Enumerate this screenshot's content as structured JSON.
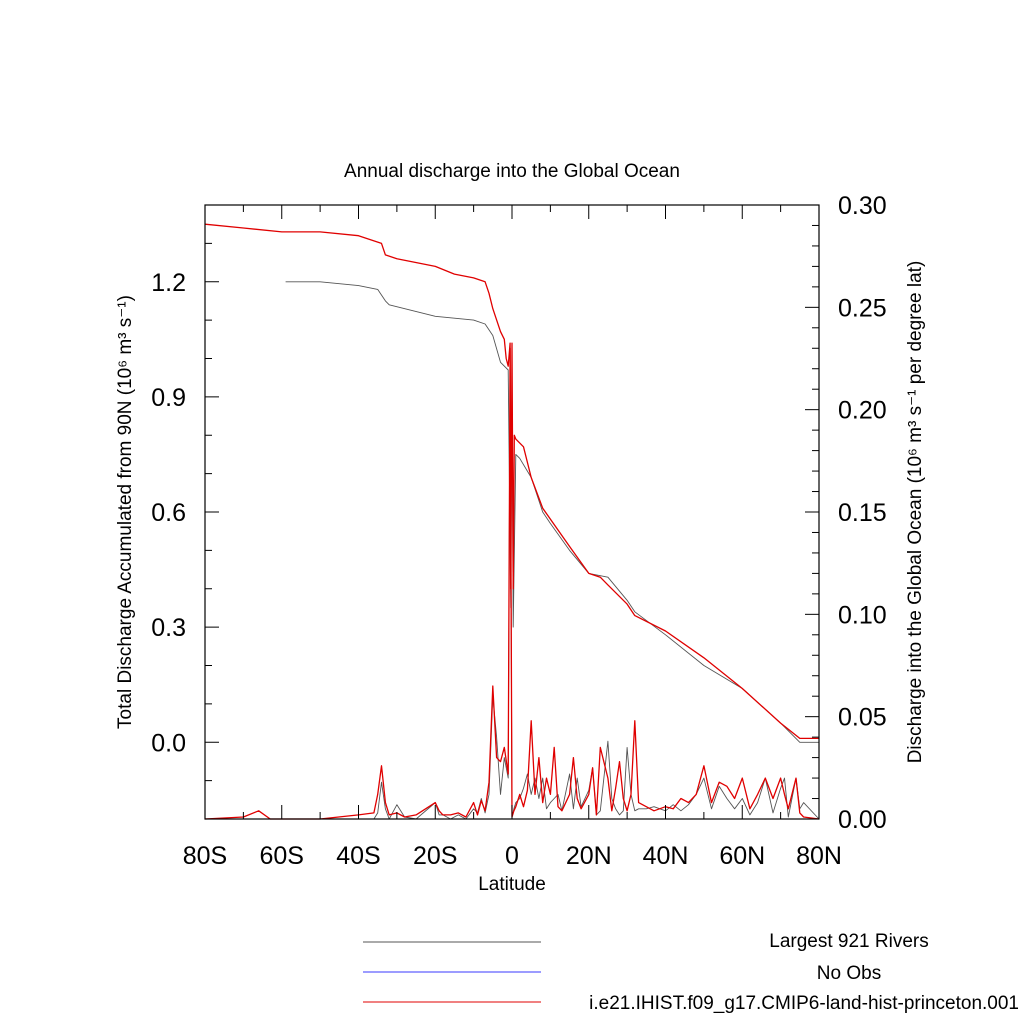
{
  "chart_data": {
    "type": "line",
    "title": "Annual discharge into the Global Ocean",
    "xlabel": "Latitude",
    "ylabel_left": "Total Discharge Accumulated from 90N (10⁶ m³ s⁻¹)",
    "ylabel_right": "Discharge into the Global Ocean (10⁶ m³ s⁻¹ per degree lat)",
    "xlim": [
      -80,
      80
    ],
    "ylim_left": [
      -0.2,
      1.4
    ],
    "ylim_right": [
      0,
      0.3
    ],
    "x_ticks": [
      {
        "value": -80,
        "label": "80S"
      },
      {
        "value": -60,
        "label": "60S"
      },
      {
        "value": -40,
        "label": "40S"
      },
      {
        "value": -20,
        "label": "20S"
      },
      {
        "value": 0,
        "label": "0"
      },
      {
        "value": 20,
        "label": "20N"
      },
      {
        "value": 40,
        "label": "40N"
      },
      {
        "value": 60,
        "label": "60N"
      },
      {
        "value": 80,
        "label": "80N"
      }
    ],
    "y_ticks_left": [
      {
        "value": 0.0,
        "label": "0.0"
      },
      {
        "value": 0.3,
        "label": "0.3"
      },
      {
        "value": 0.6,
        "label": "0.6"
      },
      {
        "value": 0.9,
        "label": "0.9"
      },
      {
        "value": 1.2,
        "label": "1.2"
      }
    ],
    "y_ticks_right": [
      {
        "value": 0.0,
        "label": "0.00"
      },
      {
        "value": 0.05,
        "label": "0.05"
      },
      {
        "value": 0.1,
        "label": "0.10"
      },
      {
        "value": 0.15,
        "label": "0.15"
      },
      {
        "value": 0.2,
        "label": "0.20"
      },
      {
        "value": 0.25,
        "label": "0.25"
      },
      {
        "value": 0.3,
        "label": "0.30"
      }
    ],
    "legend": [
      {
        "label": "Largest 921 Rivers",
        "color": "#555555"
      },
      {
        "label": "No Obs",
        "color": "#3a3aff"
      },
      {
        "label": "i.e21.IHIST.f09_g17.CMIP6-land-hist-princeton.001",
        "color": "#e00000"
      }
    ],
    "series": [
      {
        "name": "Largest 921 Rivers",
        "kind": "accumulated",
        "axis": "left",
        "color": "#555555",
        "x": [
          -59,
          -50,
          -40,
          -35,
          -33,
          -32,
          -20,
          -10,
          -7,
          -5,
          -3,
          -1,
          -0.3,
          0,
          0.3,
          1,
          2,
          5,
          8,
          10,
          15,
          20,
          25,
          30,
          32,
          40,
          50,
          60,
          70,
          75,
          80
        ],
        "y": [
          1.2,
          1.2,
          1.19,
          1.18,
          1.15,
          1.14,
          1.11,
          1.1,
          1.09,
          1.06,
          0.99,
          0.97,
          0.35,
          0.95,
          0.3,
          0.75,
          0.74,
          0.69,
          0.6,
          0.57,
          0.5,
          0.44,
          0.43,
          0.37,
          0.34,
          0.28,
          0.2,
          0.14,
          0.05,
          0.0,
          0.0
        ]
      },
      {
        "name": "i.e21.IHIST.f09_g17.CMIP6-land-hist-princeton.001",
        "kind": "accumulated",
        "axis": "left",
        "color": "#e00000",
        "x": [
          -80,
          -70,
          -60,
          -50,
          -40,
          -34,
          -33,
          -30,
          -20,
          -15,
          -10,
          -7,
          -6,
          -5,
          -3,
          -2,
          -1.5,
          -1,
          -0.5,
          -0.3,
          0,
          0.3,
          0.6,
          1,
          3,
          5,
          8,
          15,
          20,
          23,
          25,
          30,
          32,
          40,
          50,
          60,
          70,
          75,
          80
        ],
        "y": [
          1.35,
          1.34,
          1.33,
          1.33,
          1.32,
          1.3,
          1.27,
          1.26,
          1.24,
          1.22,
          1.21,
          1.2,
          1.17,
          1.13,
          1.07,
          1.05,
          1.0,
          0.98,
          1.04,
          0.4,
          1.04,
          0.4,
          0.8,
          0.79,
          0.77,
          0.69,
          0.61,
          0.51,
          0.44,
          0.43,
          0.41,
          0.36,
          0.33,
          0.29,
          0.22,
          0.14,
          0.05,
          0.01,
          0.01
        ]
      },
      {
        "name": "Largest 921 Rivers",
        "kind": "per-degree",
        "axis": "right",
        "color": "#555555",
        "x": [
          -80,
          -62,
          -48,
          -36,
          -35,
          -34,
          -33,
          -32,
          -30,
          -28,
          -25,
          -20,
          -19,
          -18,
          -16,
          -14,
          -12,
          -10,
          -9,
          -8,
          -7,
          -6,
          -5,
          -4,
          -3,
          -2,
          -1,
          -0.5,
          0,
          0.5,
          1,
          2,
          3,
          4,
          5,
          6,
          7,
          8,
          9,
          10,
          11,
          12,
          13,
          15,
          16,
          17,
          18,
          20,
          21,
          22,
          23,
          25,
          26,
          27,
          28,
          29,
          30,
          31,
          32,
          33,
          35,
          37,
          40,
          42,
          44,
          46,
          48,
          50,
          52,
          54,
          56,
          58,
          60,
          62,
          64,
          66,
          68,
          70,
          71,
          72,
          74,
          75,
          76,
          80
        ],
        "y": [
          0,
          0,
          0,
          0,
          0.003,
          0.018,
          0.005,
          0,
          0.007,
          0.001,
          0,
          0.008,
          0.002,
          0.002,
          0,
          0.002,
          0,
          0.005,
          0.003,
          0.01,
          0.003,
          0.012,
          0.06,
          0.04,
          0.012,
          0.03,
          0.02,
          0.22,
          0.001,
          0.005,
          0.008,
          0.01,
          0.015,
          0.022,
          0.012,
          0.02,
          0.01,
          0.02,
          0.005,
          0.008,
          0.01,
          0.012,
          0.004,
          0.022,
          0.005,
          0.02,
          0.006,
          0.014,
          0.025,
          0.002,
          0.004,
          0.038,
          0.01,
          0.005,
          0.002,
          0.004,
          0.035,
          0.012,
          0.004,
          0.005,
          0.005,
          0.006,
          0.004,
          0.007,
          0.004,
          0.007,
          0.012,
          0.02,
          0.005,
          0.016,
          0.01,
          0.005,
          0.01,
          0.002,
          0.008,
          0.02,
          0.003,
          0.015,
          0.02,
          0.001,
          0.02,
          0.005,
          0.008,
          0
        ]
      },
      {
        "name": "i.e21.IHIST.f09_g17.CMIP6-land-hist-princeton.001",
        "kind": "per-degree",
        "axis": "right",
        "color": "#e00000",
        "x": [
          -80,
          -70,
          -66,
          -63,
          -50,
          -40,
          -36,
          -35,
          -34,
          -33,
          -32,
          -30,
          -28,
          -25,
          -20,
          -19,
          -18,
          -16,
          -14,
          -12,
          -10,
          -9,
          -8,
          -7,
          -6,
          -5,
          -4,
          -3,
          -2,
          -1,
          -0.5,
          0,
          0.5,
          1,
          2,
          3,
          4,
          5,
          6,
          7,
          8,
          9,
          10,
          11,
          12,
          13,
          15,
          16,
          17,
          18,
          20,
          21,
          22,
          23,
          25,
          26,
          27,
          28,
          29,
          30,
          31,
          32,
          33,
          35,
          37,
          40,
          42,
          44,
          46,
          48,
          50,
          52,
          54,
          56,
          58,
          60,
          62,
          64,
          66,
          68,
          70,
          71,
          72,
          74,
          75,
          76,
          80
        ],
        "y": [
          0,
          0.001,
          0.004,
          0,
          0,
          0.002,
          0.003,
          0.012,
          0.026,
          0.008,
          0.002,
          0.003,
          0.001,
          0.002,
          0.008,
          0.004,
          0.002,
          0.002,
          0.003,
          0.001,
          0.008,
          0.002,
          0.009,
          0.004,
          0.018,
          0.065,
          0.03,
          0.028,
          0.035,
          0.022,
          0.23,
          0.001,
          0.004,
          0.006,
          0.012,
          0.006,
          0.014,
          0.048,
          0.012,
          0.03,
          0.008,
          0.02,
          0.012,
          0.035,
          0.006,
          0.004,
          0.012,
          0.03,
          0.01,
          0.005,
          0.012,
          0.025,
          0.002,
          0.035,
          0.02,
          0.004,
          0.015,
          0.028,
          0.01,
          0.004,
          0.012,
          0.048,
          0.008,
          0.006,
          0.004,
          0.006,
          0.005,
          0.01,
          0.008,
          0.012,
          0.026,
          0.008,
          0.018,
          0.016,
          0.01,
          0.02,
          0.005,
          0.012,
          0.02,
          0.01,
          0.02,
          0.012,
          0.005,
          0.02,
          0.003,
          0.001,
          0
        ]
      }
    ]
  }
}
